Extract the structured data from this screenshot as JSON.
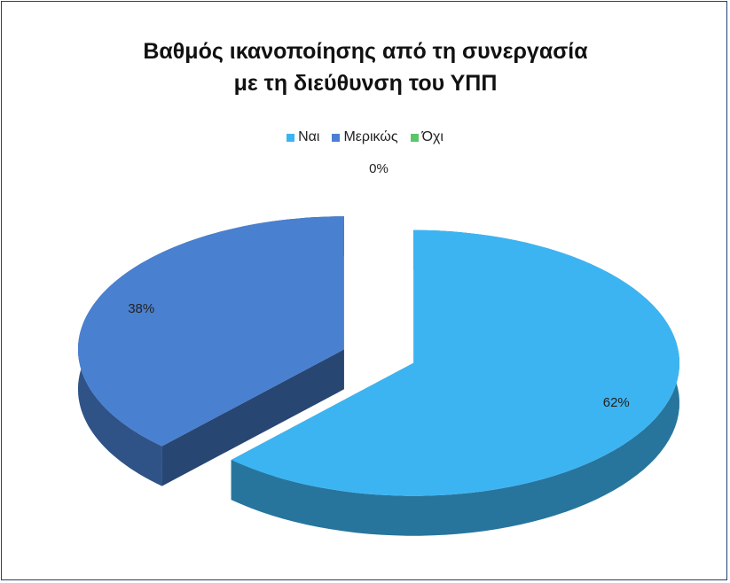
{
  "chart_data": {
    "type": "pie",
    "title": "Βαθμός ικανοποίησης από τη συνεργασία με τη διεύθυνση του ΥΠΠ",
    "categories": [
      "Ναι",
      "Μερικώς",
      "Όχι"
    ],
    "values": [
      62,
      38,
      0
    ],
    "value_labels": [
      "62%",
      "38%",
      "0%"
    ],
    "colors": [
      "#3db4f2",
      "#4a80d0",
      "#5cc56a"
    ],
    "legend": "top"
  }
}
